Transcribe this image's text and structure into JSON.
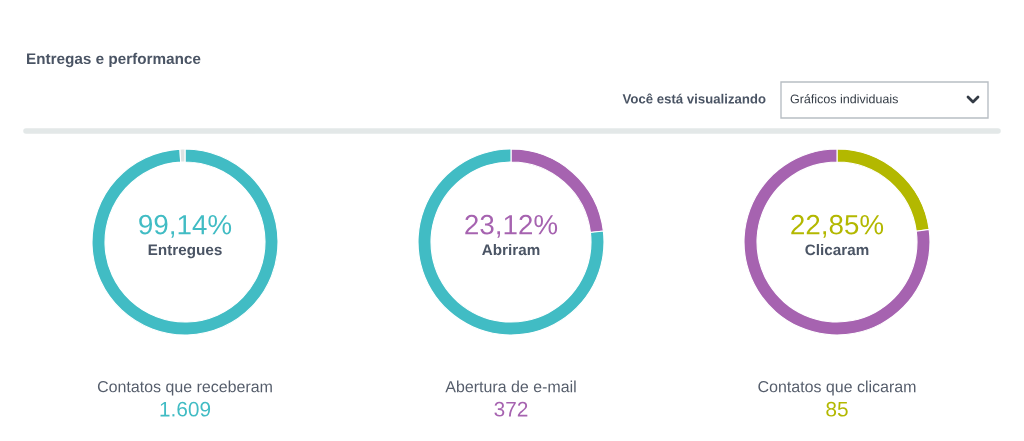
{
  "chart_data": [
    {
      "type": "other",
      "title": "Entregas e performance",
      "annotations": [
        "Você está visualizando",
        "Gráficos individuais"
      ]
    },
    {
      "type": "donut",
      "categories": [
        "Entregues",
        null
      ],
      "values": [
        99.14,
        0.86
      ],
      "colors": [
        "#41bcc4",
        "#dde3e3"
      ],
      "value_labels": [
        "99,14%",
        null
      ],
      "annotations": [
        "Contatos que receberam",
        "1.609"
      ]
    },
    {
      "type": "donut",
      "categories": [
        "Abriram",
        null
      ],
      "values": [
        23.12,
        76.88
      ],
      "colors": [
        "#a663b0",
        "#41bcc4"
      ],
      "value_labels": [
        "23,12%",
        null
      ],
      "annotations": [
        "Abertura de e-mail",
        "372"
      ]
    },
    {
      "type": "donut",
      "categories": [
        "Clicaram",
        null
      ],
      "values": [
        22.85,
        77.15
      ],
      "colors": [
        "#b3b800",
        "#a663b0"
      ],
      "value_labels": [
        "22,85%",
        null
      ],
      "annotations": [
        "Contatos que clicaram",
        "85"
      ]
    }
  ]
}
